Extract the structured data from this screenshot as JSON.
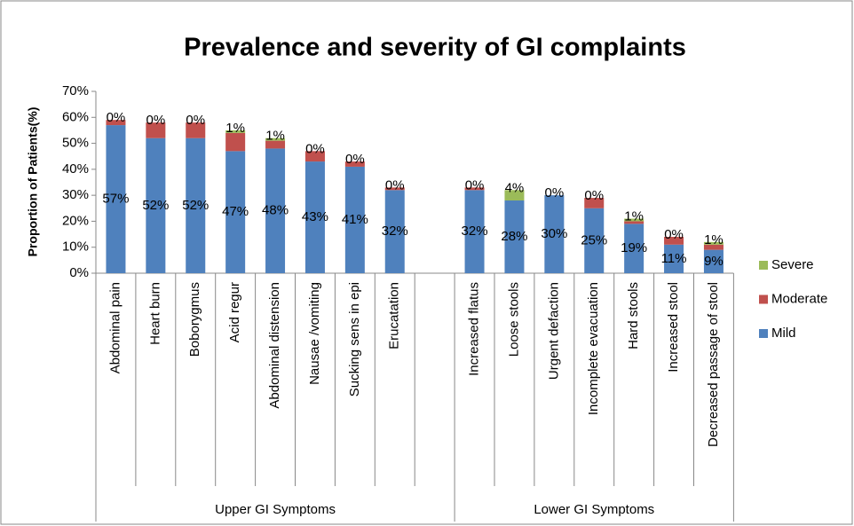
{
  "chart_data": {
    "type": "stacked_bar",
    "title": "Prevalence and severity of GI complaints",
    "y_label": "Proportion of Patients(%)",
    "categories": [
      "Abdominal pain",
      "Heart burn",
      "Boborygmus",
      "Acid regur",
      "Abdominal distension",
      "Nausae /vomiting",
      "Sucking sens in epi",
      "Erucatation",
      null,
      "Increased flatus",
      "Loose stools",
      "Urgent defaction",
      "Incomplete evacuation",
      "Hard stools",
      "Increased stool",
      "Decreased passage of stool"
    ],
    "groups": [
      "Upper GI Symptoms",
      "Lower GI Symptoms"
    ],
    "series": [
      {
        "name": "Mild",
        "color": "#4f81bd",
        "values": [
          57,
          52,
          52,
          47,
          48,
          43,
          41,
          32,
          null,
          32,
          28,
          30,
          25,
          19,
          11,
          9
        ],
        "value_labels": [
          "57%",
          "52%",
          "52%",
          "47%",
          "48%",
          "43%",
          "41%",
          "32%",
          null,
          "32%",
          "28%",
          "30%",
          "25%",
          "19%",
          "11%",
          "9%"
        ]
      },
      {
        "name": "Moderate",
        "color": "#c0504d",
        "values": [
          2,
          6,
          6,
          7,
          3,
          4,
          2,
          1,
          null,
          1,
          0,
          0,
          4,
          1,
          3,
          2
        ]
      },
      {
        "name": "Severe",
        "color": "#9bbb59",
        "values": [
          0,
          0,
          0,
          1,
          1,
          0,
          0,
          0,
          null,
          0,
          4,
          0,
          0,
          1,
          0,
          1
        ],
        "value_labels": [
          "0%",
          "0%",
          "0%",
          "1%",
          "1%",
          "0%",
          "0%",
          "0%",
          null,
          "0%",
          "4%",
          "0%",
          "0%",
          "1%",
          "0%",
          "1%"
        ]
      }
    ],
    "ylim": [
      0,
      70
    ],
    "yticks": [
      {
        "value": 0,
        "label": "0%"
      },
      {
        "value": 10,
        "label": "10%"
      },
      {
        "value": 20,
        "label": "20%"
      },
      {
        "value": 30,
        "label": "30%"
      },
      {
        "value": 40,
        "label": "40%"
      },
      {
        "value": 50,
        "label": "50%"
      },
      {
        "value": 60,
        "label": "60%"
      },
      {
        "value": 70,
        "label": "70%"
      }
    ],
    "grid": false,
    "legend": "right"
  }
}
